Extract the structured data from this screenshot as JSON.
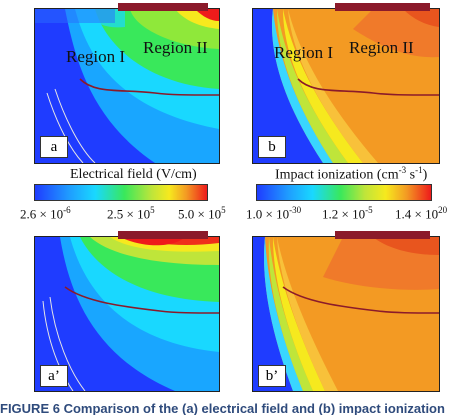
{
  "panels": {
    "a": {
      "label": "a",
      "region_1": "Region I",
      "region_2": "Region II"
    },
    "b": {
      "label": "b",
      "region_1": "Region I",
      "region_2": "Region II"
    },
    "a_prime": {
      "label": "a’"
    },
    "b_prime": {
      "label": "b’"
    }
  },
  "colorbars": {
    "electrical": {
      "title": "Electrical field (V/cm)",
      "ticks": [
        "2.6 × 10",
        "2.5 × 10",
        "5.0 × 10"
      ],
      "exponents": [
        "-6",
        "5",
        "5"
      ]
    },
    "impact": {
      "title": "Impact ionization (cm",
      "title_exp1": "-3",
      "title_mid": " s",
      "title_exp2": "-1",
      "title_end": ")",
      "ticks": [
        "1.0 × 10",
        "1.2 × 10",
        "1.4 × 10"
      ],
      "exponents": [
        "-30",
        "-5",
        "20"
      ]
    }
  },
  "caption": "FIGURE 6   Comparison of the (a) electrical field and (b) impact ionization",
  "colors": {
    "field_blue": "#1f3cff",
    "field_cyan": "#19d8ff",
    "field_green": "#39e85b",
    "field_yellow": "#f6e91e",
    "field_red": "#ee1b1b",
    "ion_orange": "#f39a23",
    "ion_amber": "#f8c13a",
    "gate": "#8b1a2a"
  }
}
